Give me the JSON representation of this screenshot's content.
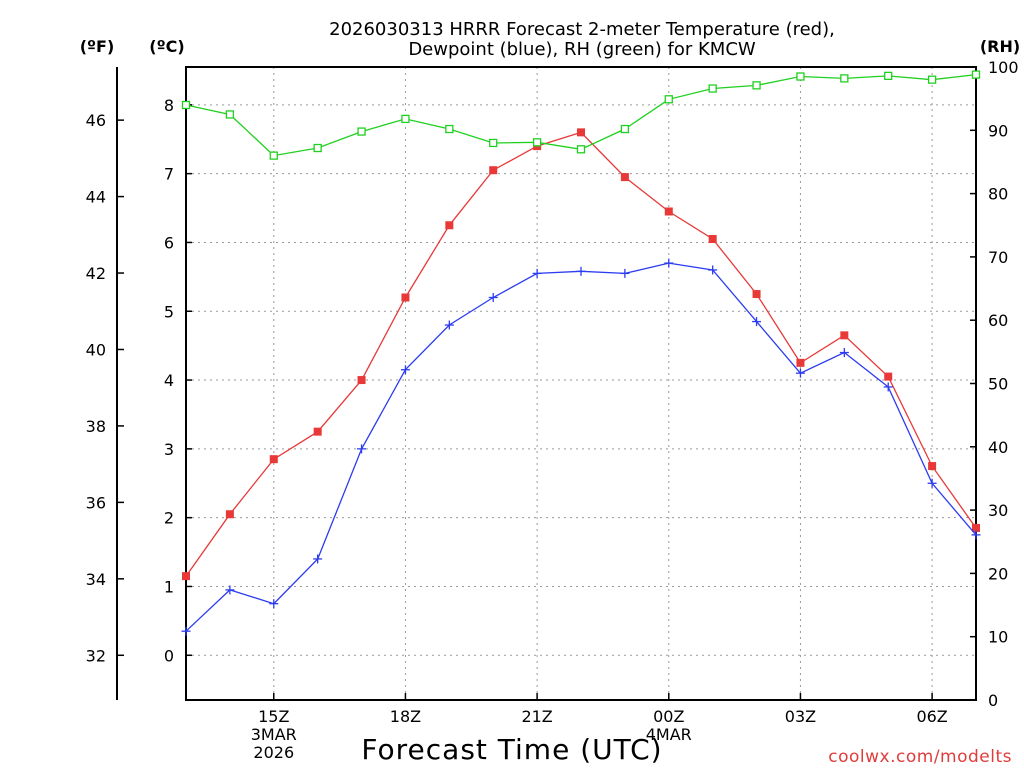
{
  "chart_data": {
    "type": "line",
    "title_line1": "2026030313 HRRR Forecast 2-meter Temperature (red),",
    "title_line2": "Dewpoint (blue), RH (green) for KMCW",
    "xlabel": "Forecast Time (UTC)",
    "credit": "coolwx.com/modelts",
    "unit_labels": {
      "fahrenheit": "(ºF)",
      "celsius": "(ºC)",
      "rh": "(RH)"
    },
    "x_hours": [
      13,
      14,
      15,
      16,
      17,
      18,
      19,
      20,
      21,
      22,
      23,
      24,
      25,
      26,
      27,
      28,
      29,
      30,
      31
    ],
    "x_ticks": [
      {
        "hour": 15,
        "lines": [
          "15Z",
          "3MAR",
          "2026"
        ]
      },
      {
        "hour": 18,
        "lines": [
          "18Z"
        ]
      },
      {
        "hour": 21,
        "lines": [
          "21Z"
        ]
      },
      {
        "hour": 24,
        "lines": [
          "00Z",
          "4MAR"
        ]
      },
      {
        "hour": 27,
        "lines": [
          "03Z"
        ]
      },
      {
        "hour": 30,
        "lines": [
          "06Z"
        ]
      }
    ],
    "xlim": [
      13,
      31
    ],
    "celsius_axis": {
      "ylim": [
        -0.65,
        8.55
      ],
      "ticks": [
        "0",
        "1",
        "2",
        "3",
        "4",
        "5",
        "6",
        "7",
        "8"
      ]
    },
    "fahrenheit_axis": {
      "ticks": [
        "32",
        "34",
        "36",
        "38",
        "40",
        "42",
        "44",
        "46"
      ]
    },
    "rh_axis": {
      "ylim": [
        0,
        100
      ],
      "ticks": [
        "0",
        "10",
        "20",
        "30",
        "40",
        "50",
        "60",
        "70",
        "80",
        "90",
        "100"
      ]
    },
    "series": [
      {
        "name": "Temperature",
        "unit": "C",
        "color": "#e83838",
        "marker": "filled-square",
        "values": [
          1.15,
          2.05,
          2.85,
          3.25,
          4.0,
          5.2,
          6.25,
          7.05,
          7.4,
          7.6,
          6.95,
          6.45,
          6.05,
          5.25,
          4.25,
          4.65,
          4.05,
          2.75,
          1.85
        ]
      },
      {
        "name": "Dewpoint",
        "unit": "C",
        "color": "#2c3cf0",
        "marker": "plus",
        "values": [
          0.35,
          0.95,
          0.75,
          1.4,
          3.0,
          4.15,
          4.8,
          5.2,
          5.55,
          5.58,
          5.55,
          5.7,
          5.6,
          4.85,
          4.1,
          4.4,
          3.9,
          2.5,
          1.75
        ]
      },
      {
        "name": "RH",
        "unit": "%",
        "color": "#20d020",
        "marker": "open-square",
        "values": [
          94,
          92.5,
          86,
          87.2,
          89.8,
          91.8,
          90.2,
          88,
          88.1,
          87,
          90.2,
          94.9,
          96.6,
          97.1,
          98.5,
          98.2,
          98.6,
          98,
          98.8
        ]
      }
    ]
  }
}
